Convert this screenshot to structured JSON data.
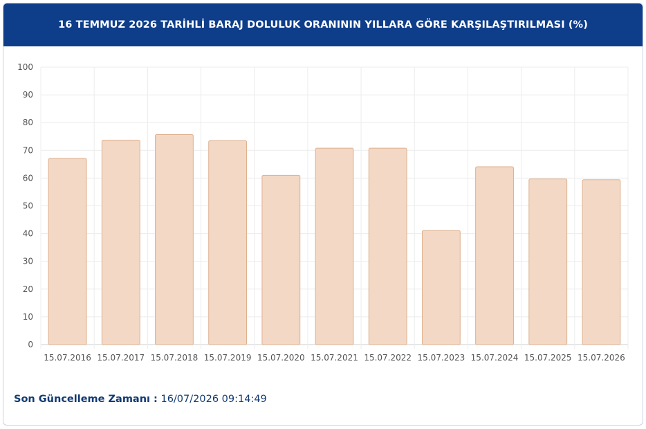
{
  "header": {
    "title": "16 TEMMUZ 2026 TARİHLİ BARAJ DOLULUK ORANININ YILLARA GÖRE KARŞILAŞTIRILMASI (%)"
  },
  "chart_data": {
    "type": "bar",
    "categories": [
      "15.07.2016",
      "15.07.2017",
      "15.07.2018",
      "15.07.2019",
      "15.07.2020",
      "15.07.2021",
      "15.07.2022",
      "15.07.2023",
      "15.07.2024",
      "15.07.2025",
      "15.07.2026"
    ],
    "values": [
      67.1,
      73.7,
      75.7,
      73.5,
      61.0,
      70.8,
      70.8,
      41.1,
      64.1,
      59.7,
      59.4
    ],
    "yticks": [
      0,
      10,
      20,
      30,
      40,
      50,
      60,
      70,
      80,
      90,
      100
    ],
    "ylim": [
      0,
      100
    ],
    "grid": true,
    "bar_fill": "#f3d8c5",
    "bar_stroke": "#ddb08d"
  },
  "footer": {
    "label": "Son Güncelleme Zamanı :",
    "value": "16/07/2026 09:14:49"
  },
  "colors": {
    "header_bg": "#0e3d8a",
    "footer_text": "#123a72"
  }
}
